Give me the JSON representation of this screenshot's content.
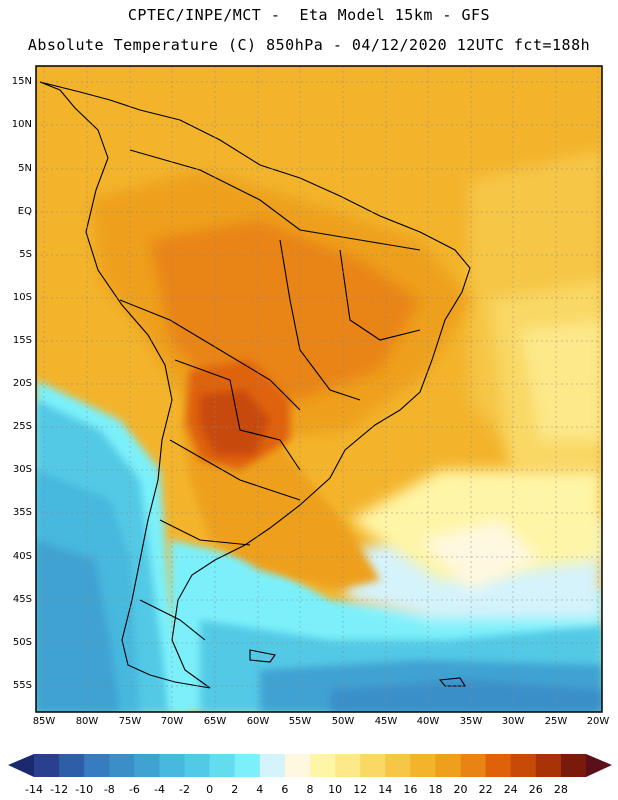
{
  "header": {
    "line1": "CPTEC/INPE/MCT -  Eta Model 15km - GFS",
    "line2": "Absolute Temperature (C) 850hPa - 04/12/2020 12UTC fct=188h"
  },
  "axes": {
    "lat_labels": [
      "15N",
      "10N",
      "5N",
      "EQ",
      "5S",
      "10S",
      "15S",
      "20S",
      "25S",
      "30S",
      "35S",
      "40S",
      "45S",
      "50S",
      "55S"
    ],
    "lon_labels": [
      "85W",
      "80W",
      "75W",
      "70W",
      "65W",
      "60W",
      "55W",
      "50W",
      "45W",
      "40W",
      "35W",
      "30W",
      "25W",
      "20W"
    ]
  },
  "colorbar": {
    "labels": [
      "-14",
      "-12",
      "-10",
      "-8",
      "-6",
      "-4",
      "-2",
      "0",
      "2",
      "4",
      "6",
      "8",
      "10",
      "12",
      "14",
      "16",
      "18",
      "20",
      "22",
      "24",
      "26",
      "28"
    ],
    "colors": [
      "#2a3f8f",
      "#2e5ea8",
      "#357cc0",
      "#3b8fc9",
      "#3fa2d2",
      "#47b8de",
      "#52c9e6",
      "#64dcef",
      "#7cf0fa",
      "#d5f3fb",
      "#fff8e0",
      "#fff5a6",
      "#fde88a",
      "#f9d865",
      "#f6c646",
      "#f3b42c",
      "#eea01d",
      "#e98414",
      "#df620b",
      "#c84a08",
      "#a83306",
      "#7a1a0a"
    ],
    "end_left_color": "#1b2a6e",
    "end_right_color": "#5a0f1a"
  }
}
